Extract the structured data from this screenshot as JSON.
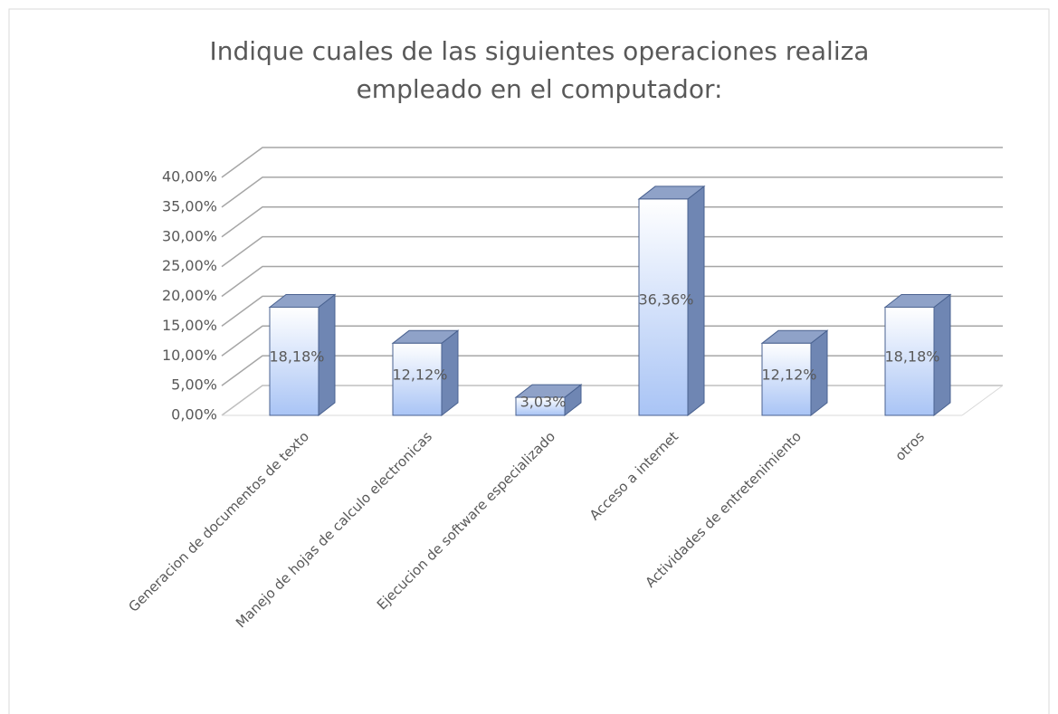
{
  "chart_data": {
    "type": "bar3d",
    "title": [
      "Indique cuales de las siguientes operaciones realiza",
      "empleado en  el computador:"
    ],
    "categories": [
      "Generacion de documentos de texto",
      "Manejo de hojas de calculo electronicas",
      "Ejecucion de software especializado",
      "Acceso a internet",
      "Actividades de entretenimiento",
      "otros"
    ],
    "values": [
      18.18,
      12.12,
      3.03,
      36.36,
      12.12,
      18.18
    ],
    "value_labels": [
      "18,18%",
      "12,12%",
      "3,03%",
      "36,36%",
      "12,12%",
      "18,18%"
    ],
    "color": "#a9c4f5",
    "ylim": [
      0,
      40
    ],
    "yticks": [
      {
        "value": 0,
        "label": "0,00%"
      },
      {
        "value": 5,
        "label": "5,00%"
      },
      {
        "value": 10,
        "label": "10,00%"
      },
      {
        "value": 15,
        "label": "15,00%"
      },
      {
        "value": 20,
        "label": "20,00%"
      },
      {
        "value": 25,
        "label": "25,00%"
      },
      {
        "value": 30,
        "label": "30,00%"
      },
      {
        "value": 35,
        "label": "35,00%"
      },
      {
        "value": 40,
        "label": "40,00%"
      }
    ],
    "grid": true
  }
}
